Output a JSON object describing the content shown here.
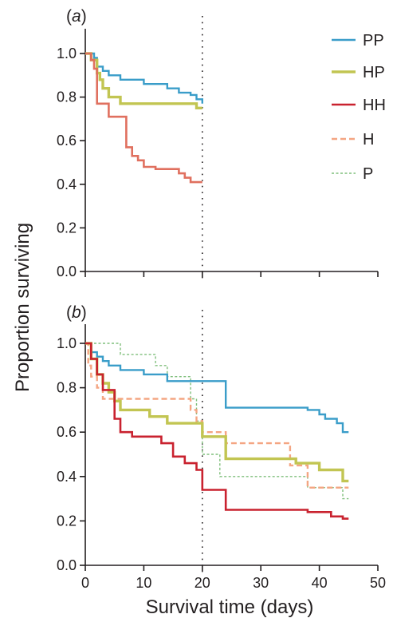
{
  "chart_data": {
    "type": "line",
    "step": true,
    "ylabel": "Proportion surviving",
    "xlabel": "Survival time (days)",
    "colors": {
      "PP": "#3a9dc9",
      "HP": "#c2c552",
      "HH": "#c9222f",
      "H": "#f4a582",
      "P": "#7fbf7b"
    },
    "legend": {
      "position": "top-right",
      "entries": [
        {
          "name": "PP",
          "style": "solid"
        },
        {
          "name": "HP",
          "style": "solid-thick"
        },
        {
          "name": "HH",
          "style": "solid"
        },
        {
          "name": "H",
          "style": "dashed"
        },
        {
          "name": "P",
          "style": "dotted"
        }
      ]
    },
    "reference_line": {
      "x": 20,
      "style": "dotted"
    },
    "xlim": [
      0,
      50
    ],
    "ylim": [
      0,
      1.05
    ],
    "xticks": [
      0,
      10,
      20,
      30,
      40,
      50
    ],
    "xtick_labels": [
      "0",
      "10",
      "20",
      "30",
      "40",
      "50"
    ],
    "yticks": [
      0,
      0.2,
      0.4,
      0.6,
      0.8,
      1.0
    ],
    "ytick_labels": [
      "0.0",
      "0.2",
      "0.4",
      "0.6",
      "0.8",
      "1.0"
    ],
    "panels": [
      {
        "tag_letter": "a",
        "series": [
          {
            "name": "PP",
            "x": [
              0,
              1.5,
              2,
              3,
              4,
              6,
              10,
              14,
              16,
              18,
              19,
              20
            ],
            "y": [
              1.0,
              0.98,
              0.94,
              0.92,
              0.9,
              0.88,
              0.86,
              0.84,
              0.82,
              0.81,
              0.79,
              0.77
            ]
          },
          {
            "name": "HP",
            "x": [
              0,
              1,
              2,
              2.5,
              3,
              4,
              6,
              19,
              20
            ],
            "y": [
              1.0,
              0.97,
              0.91,
              0.88,
              0.84,
              0.8,
              0.77,
              0.75,
              0.75
            ]
          },
          {
            "name": "HH",
            "x": [
              0,
              1,
              1.5,
              2,
              4,
              7,
              8,
              9,
              10,
              12,
              14,
              16,
              17,
              18,
              20
            ],
            "y": [
              1.0,
              0.97,
              0.93,
              0.77,
              0.71,
              0.57,
              0.53,
              0.51,
              0.48,
              0.47,
              0.47,
              0.45,
              0.43,
              0.41,
              0.41
            ]
          }
        ]
      },
      {
        "tag_letter": "b",
        "series": [
          {
            "name": "P",
            "x": [
              0,
              4,
              6,
              12,
              14,
              18,
              19,
              20,
              23,
              24,
              38,
              40,
              41,
              42,
              44,
              45
            ],
            "y": [
              1.0,
              1.0,
              0.95,
              0.9,
              0.85,
              0.75,
              0.65,
              0.5,
              0.4,
              0.4,
              0.35,
              0.35,
              0.35,
              0.35,
              0.3,
              0.3
            ]
          },
          {
            "name": "H",
            "x": [
              0,
              0.5,
              1,
              2,
              3,
              5,
              8,
              11,
              14,
              18,
              19,
              20,
              23,
              24,
              35,
              37,
              38,
              40,
              45
            ],
            "y": [
              1.0,
              0.9,
              0.85,
              0.8,
              0.75,
              0.75,
              0.75,
              0.75,
              0.75,
              0.7,
              0.65,
              0.6,
              0.6,
              0.55,
              0.45,
              0.45,
              0.35,
              0.35,
              0.35
            ]
          },
          {
            "name": "PP",
            "x": [
              0,
              1,
              2,
              3,
              4,
              6,
              10,
              14,
              18,
              20,
              24,
              38,
              40,
              41,
              43,
              44,
              45
            ],
            "y": [
              1.0,
              0.96,
              0.94,
              0.92,
              0.9,
              0.88,
              0.86,
              0.83,
              0.83,
              0.83,
              0.71,
              0.7,
              0.68,
              0.66,
              0.64,
              0.6,
              0.6
            ]
          },
          {
            "name": "HP",
            "x": [
              0,
              1,
              2,
              3,
              4,
              5,
              6,
              8,
              11,
              14,
              17,
              19,
              20,
              24,
              36,
              40,
              44,
              45
            ],
            "y": [
              1.0,
              0.93,
              0.86,
              0.82,
              0.78,
              0.74,
              0.7,
              0.7,
              0.67,
              0.64,
              0.64,
              0.64,
              0.58,
              0.48,
              0.46,
              0.43,
              0.38,
              0.38
            ]
          },
          {
            "name": "HH",
            "x": [
              0,
              1,
              2,
              3,
              5,
              6,
              8,
              10,
              13,
              15,
              17,
              19,
              20,
              24,
              27,
              32,
              38,
              42,
              44,
              45
            ],
            "y": [
              1.0,
              0.93,
              0.86,
              0.79,
              0.66,
              0.6,
              0.58,
              0.58,
              0.55,
              0.49,
              0.46,
              0.43,
              0.34,
              0.25,
              0.25,
              0.25,
              0.24,
              0.22,
              0.21,
              0.21
            ]
          }
        ]
      }
    ]
  }
}
